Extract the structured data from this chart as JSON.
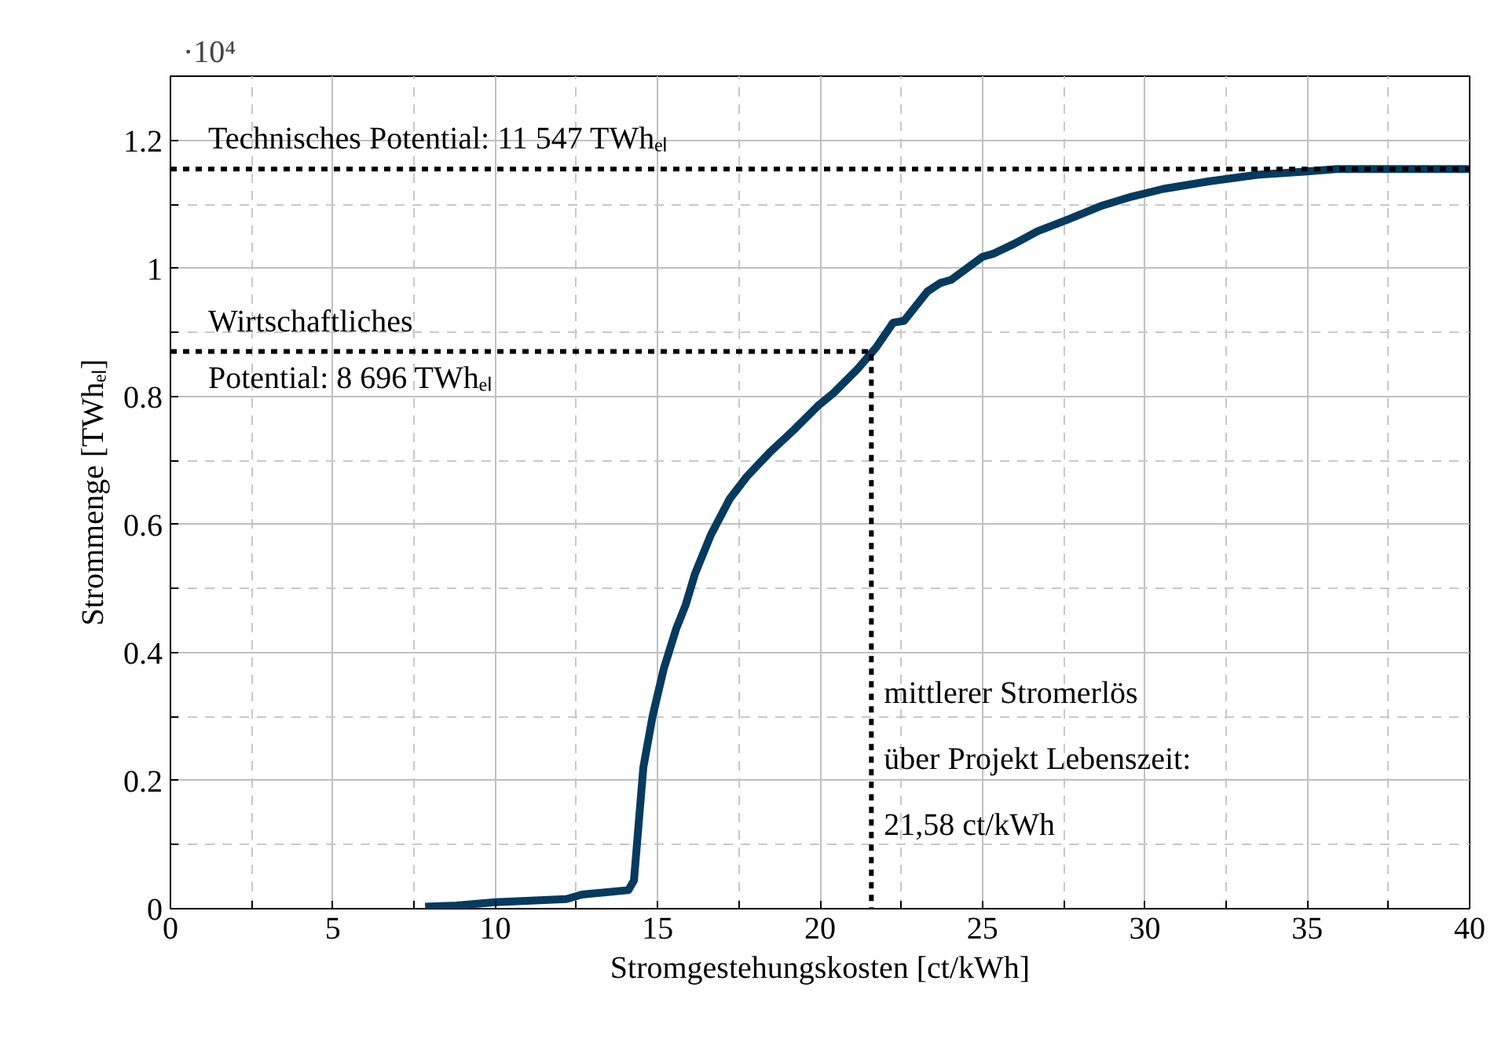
{
  "chart_data": {
    "type": "line",
    "xlabel": "Stromgestehungskosten [ct/kWh]",
    "ylabel": "Strommenge [TWhₑₗ]",
    "annotations": [
      "·10⁴",
      "Technisches Potential: 11 547 TWhₑₗ",
      "Wirtschaftliches\nPotential: 8 696 TWhₑₗ",
      "mittlerer Stromerlös\nüber Projekt Lebenszeit:\n21,58 ct/kWh"
    ],
    "series": [
      {
        "color": "#063a5e",
        "x": [
          7.84,
          8.8,
          10.0,
          12.19,
          12.67,
          14.1,
          14.27,
          14.56,
          14.85,
          15.19,
          15.57,
          15.86,
          16.15,
          16.64,
          17.22,
          17.75,
          18.48,
          19.2,
          19.93,
          20.41,
          21.14,
          21.72,
          22.25,
          22.59,
          23.31,
          23.7,
          24.04,
          25.0,
          25.35,
          25.97,
          26.7,
          27.67,
          28.63,
          29.6,
          30.57,
          32.0,
          33.47,
          34.92,
          35.9,
          40
        ],
        "values": [
          0.003,
          0.005,
          0.01,
          0.015,
          0.022,
          0.029,
          0.044,
          0.221,
          0.302,
          0.375,
          0.437,
          0.474,
          0.523,
          0.584,
          0.64,
          0.675,
          0.714,
          0.748,
          0.785,
          0.805,
          0.842,
          0.876,
          0.915,
          0.918,
          0.964,
          0.977,
          0.982,
          1.018,
          1.023,
          1.038,
          1.058,
          1.077,
          1.097,
          1.112,
          1.124,
          1.136,
          1.146,
          1.151,
          1.155,
          1.155
        ]
      },
      {
        "color": "#000000",
        "line_style": "dashed",
        "x": [
          0,
          40
        ],
        "values": [
          1.155,
          1.155
        ]
      },
      {
        "color": "#000000",
        "line_style": "dashed",
        "x": [
          0,
          21.58,
          21.58
        ],
        "values": [
          0.87,
          0.87,
          0
        ]
      }
    ],
    "xlim": [
      0,
      40
    ],
    "ylim": [
      0,
      1.3
    ],
    "xticks": [
      0,
      {
        "value": 2.5,
        "label": null
      },
      5,
      {
        "value": 7.5,
        "label": null
      },
      10,
      {
        "value": 12.5,
        "label": null
      },
      15,
      {
        "value": 17.5,
        "label": null
      },
      20,
      {
        "value": 22.5,
        "label": null
      },
      25,
      {
        "value": 27.5,
        "label": null
      },
      30,
      {
        "value": 32.5,
        "label": null
      },
      35,
      {
        "value": 37.5,
        "label": null
      },
      40
    ],
    "yticks": [
      0,
      {
        "value": 0.1,
        "label": null
      },
      0.2,
      {
        "value": 0.3,
        "label": null
      },
      0.4,
      {
        "value": 0.5,
        "label": null
      },
      0.6,
      {
        "value": 0.7,
        "label": null
      },
      0.8,
      {
        "value": 0.9,
        "label": null
      },
      1,
      {
        "value": 1.1,
        "label": null
      },
      1.2
    ],
    "grid": true,
    "line_style": "solid",
    "marker": "none"
  }
}
